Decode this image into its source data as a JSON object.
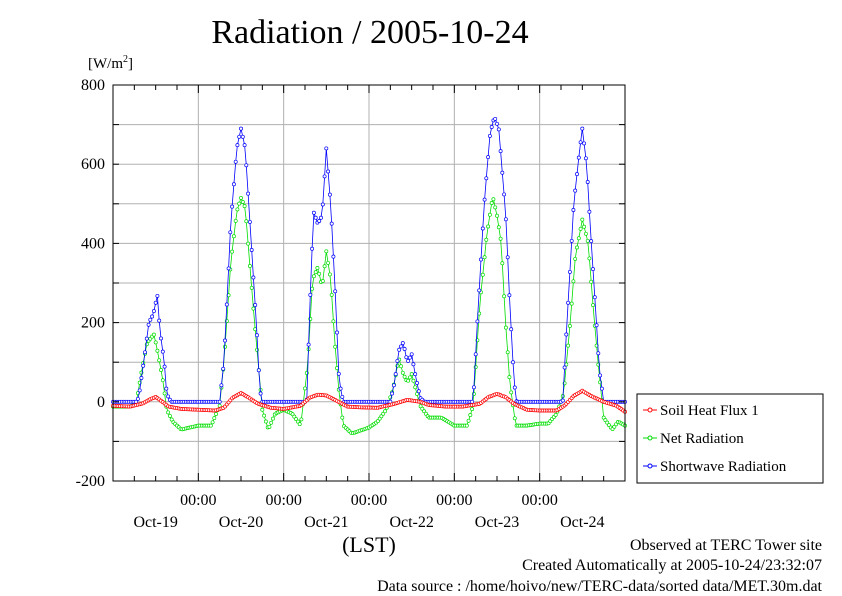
{
  "title": "Radiation / 2005-10-24",
  "unit_label": "[W/m",
  "unit_sup": "2",
  "unit_close": "]",
  "xlabel": "(LST)",
  "footer": {
    "line1": "Observed at TERC Tower site",
    "line2": "Created Automatically at 2005-10-24/23:32:07",
    "line3": "Data source : /home/hoivo/new/TERC-data/sorted  data/MET.30m.dat"
  },
  "chart_data": {
    "type": "line",
    "title": "Radiation / 2005-10-24",
    "xlabel": "(LST)",
    "ylabel": "[W/m2]",
    "ylim": [
      -200,
      800
    ],
    "yticks": [
      -200,
      0,
      200,
      400,
      600,
      800
    ],
    "xlim_days": [
      0,
      6
    ],
    "x_unit": "days since 2005-10-19 00:00 LST",
    "x_time_ticks": [
      {
        "day": 1,
        "label": "00:00"
      },
      {
        "day": 2,
        "label": "00:00"
      },
      {
        "day": 3,
        "label": "00:00"
      },
      {
        "day": 4,
        "label": "00:00"
      },
      {
        "day": 5,
        "label": "00:00"
      }
    ],
    "x_day_labels": [
      {
        "day": 0.5,
        "label": "Oct-19"
      },
      {
        "day": 1.5,
        "label": "Oct-20"
      },
      {
        "day": 2.5,
        "label": "Oct-21"
      },
      {
        "day": 3.5,
        "label": "Oct-22"
      },
      {
        "day": 4.5,
        "label": "Oct-23"
      },
      {
        "day": 5.5,
        "label": "Oct-24"
      }
    ],
    "grid": true,
    "legend_position": "right",
    "series": [
      {
        "name": "Soil Heat Flux 1",
        "color": "#ff0000",
        "points": [
          [
            0,
            -10
          ],
          [
            0.2,
            -12
          ],
          [
            0.35,
            -4
          ],
          [
            0.45,
            8
          ],
          [
            0.5,
            12
          ],
          [
            0.55,
            5
          ],
          [
            0.65,
            -12
          ],
          [
            0.8,
            -18
          ],
          [
            1.0,
            -20
          ],
          [
            1.2,
            -22
          ],
          [
            1.3,
            -15
          ],
          [
            1.4,
            10
          ],
          [
            1.5,
            22
          ],
          [
            1.58,
            12
          ],
          [
            1.7,
            -5
          ],
          [
            1.85,
            -15
          ],
          [
            2.0,
            -18
          ],
          [
            2.2,
            -10
          ],
          [
            2.3,
            10
          ],
          [
            2.4,
            18
          ],
          [
            2.5,
            16
          ],
          [
            2.6,
            5
          ],
          [
            2.75,
            -12
          ],
          [
            2.9,
            -14
          ],
          [
            3.1,
            -15
          ],
          [
            3.3,
            -5
          ],
          [
            3.45,
            5
          ],
          [
            3.6,
            0
          ],
          [
            3.7,
            -8
          ],
          [
            3.9,
            -12
          ],
          [
            4.1,
            -12
          ],
          [
            4.3,
            -5
          ],
          [
            4.4,
            12
          ],
          [
            4.5,
            20
          ],
          [
            4.6,
            12
          ],
          [
            4.7,
            -5
          ],
          [
            4.85,
            -20
          ],
          [
            5.0,
            -22
          ],
          [
            5.2,
            -22
          ],
          [
            5.3,
            -8
          ],
          [
            5.4,
            15
          ],
          [
            5.5,
            28
          ],
          [
            5.6,
            15
          ],
          [
            5.75,
            0
          ],
          [
            5.9,
            -10
          ],
          [
            6.0,
            -25
          ]
        ]
      },
      {
        "name": "Net Radiation",
        "color": "#00dd00",
        "points": [
          [
            0,
            -12
          ],
          [
            0.2,
            -12
          ],
          [
            0.27,
            -5
          ],
          [
            0.33,
            70
          ],
          [
            0.4,
            150
          ],
          [
            0.48,
            170
          ],
          [
            0.52,
            130
          ],
          [
            0.58,
            60
          ],
          [
            0.63,
            -20
          ],
          [
            0.7,
            -50
          ],
          [
            0.8,
            -70
          ],
          [
            1.0,
            -60
          ],
          [
            1.15,
            -60
          ],
          [
            1.25,
            -10
          ],
          [
            1.3,
            100
          ],
          [
            1.38,
            350
          ],
          [
            1.45,
            480
          ],
          [
            1.5,
            515
          ],
          [
            1.55,
            490
          ],
          [
            1.62,
            300
          ],
          [
            1.7,
            100
          ],
          [
            1.75,
            -20
          ],
          [
            1.82,
            -70
          ],
          [
            1.9,
            -30
          ],
          [
            2.0,
            -20
          ],
          [
            2.1,
            -30
          ],
          [
            2.2,
            -60
          ],
          [
            2.28,
            90
          ],
          [
            2.34,
            310
          ],
          [
            2.4,
            340
          ],
          [
            2.45,
            290
          ],
          [
            2.5,
            380
          ],
          [
            2.55,
            310
          ],
          [
            2.6,
            150
          ],
          [
            2.65,
            20
          ],
          [
            2.7,
            -60
          ],
          [
            2.8,
            -80
          ],
          [
            3.0,
            -65
          ],
          [
            3.1,
            -50
          ],
          [
            3.2,
            -20
          ],
          [
            3.28,
            30
          ],
          [
            3.35,
            110
          ],
          [
            3.4,
            70
          ],
          [
            3.45,
            50
          ],
          [
            3.5,
            70
          ],
          [
            3.55,
            30
          ],
          [
            3.6,
            -10
          ],
          [
            3.7,
            -40
          ],
          [
            3.85,
            -40
          ],
          [
            4.0,
            -60
          ],
          [
            4.15,
            -60
          ],
          [
            4.22,
            -10
          ],
          [
            4.3,
            250
          ],
          [
            4.38,
            420
          ],
          [
            4.45,
            520
          ],
          [
            4.5,
            470
          ],
          [
            4.55,
            400
          ],
          [
            4.6,
            200
          ],
          [
            4.65,
            50
          ],
          [
            4.72,
            -60
          ],
          [
            4.85,
            -60
          ],
          [
            5.0,
            -55
          ],
          [
            5.1,
            -55
          ],
          [
            5.2,
            -30
          ],
          [
            5.28,
            20
          ],
          [
            5.35,
            180
          ],
          [
            5.42,
            370
          ],
          [
            5.5,
            460
          ],
          [
            5.57,
            400
          ],
          [
            5.63,
            230
          ],
          [
            5.68,
            110
          ],
          [
            5.75,
            -40
          ],
          [
            5.85,
            -70
          ],
          [
            5.92,
            -50
          ],
          [
            6.0,
            -60
          ]
        ]
      },
      {
        "name": "Shortwave Radiation",
        "color": "#0000ff",
        "points": [
          [
            0,
            0
          ],
          [
            0.27,
            0
          ],
          [
            0.3,
            10
          ],
          [
            0.36,
            100
          ],
          [
            0.42,
            200
          ],
          [
            0.47,
            220
          ],
          [
            0.52,
            270
          ],
          [
            0.55,
            180
          ],
          [
            0.6,
            100
          ],
          [
            0.63,
            20
          ],
          [
            0.68,
            0
          ],
          [
            1.25,
            0
          ],
          [
            1.3,
            100
          ],
          [
            1.38,
            450
          ],
          [
            1.45,
            640
          ],
          [
            1.5,
            690
          ],
          [
            1.55,
            640
          ],
          [
            1.62,
            400
          ],
          [
            1.68,
            200
          ],
          [
            1.72,
            30
          ],
          [
            1.75,
            0
          ],
          [
            2.27,
            0
          ],
          [
            2.3,
            200
          ],
          [
            2.35,
            480
          ],
          [
            2.4,
            450
          ],
          [
            2.45,
            470
          ],
          [
            2.5,
            640
          ],
          [
            2.55,
            500
          ],
          [
            2.6,
            300
          ],
          [
            2.65,
            50
          ],
          [
            2.7,
            0
          ],
          [
            3.25,
            0
          ],
          [
            3.3,
            50
          ],
          [
            3.35,
            130
          ],
          [
            3.4,
            150
          ],
          [
            3.45,
            100
          ],
          [
            3.5,
            120
          ],
          [
            3.55,
            60
          ],
          [
            3.6,
            10
          ],
          [
            3.65,
            0
          ],
          [
            4.22,
            0
          ],
          [
            4.27,
            200
          ],
          [
            4.35,
            500
          ],
          [
            4.42,
            680
          ],
          [
            4.47,
            720
          ],
          [
            4.52,
            690
          ],
          [
            4.6,
            480
          ],
          [
            4.65,
            250
          ],
          [
            4.7,
            50
          ],
          [
            4.73,
            0
          ],
          [
            5.27,
            0
          ],
          [
            5.32,
            200
          ],
          [
            5.4,
            500
          ],
          [
            5.47,
            640
          ],
          [
            5.5,
            690
          ],
          [
            5.55,
            600
          ],
          [
            5.6,
            420
          ],
          [
            5.65,
            250
          ],
          [
            5.7,
            80
          ],
          [
            5.75,
            0
          ],
          [
            6.0,
            0
          ]
        ]
      }
    ]
  }
}
